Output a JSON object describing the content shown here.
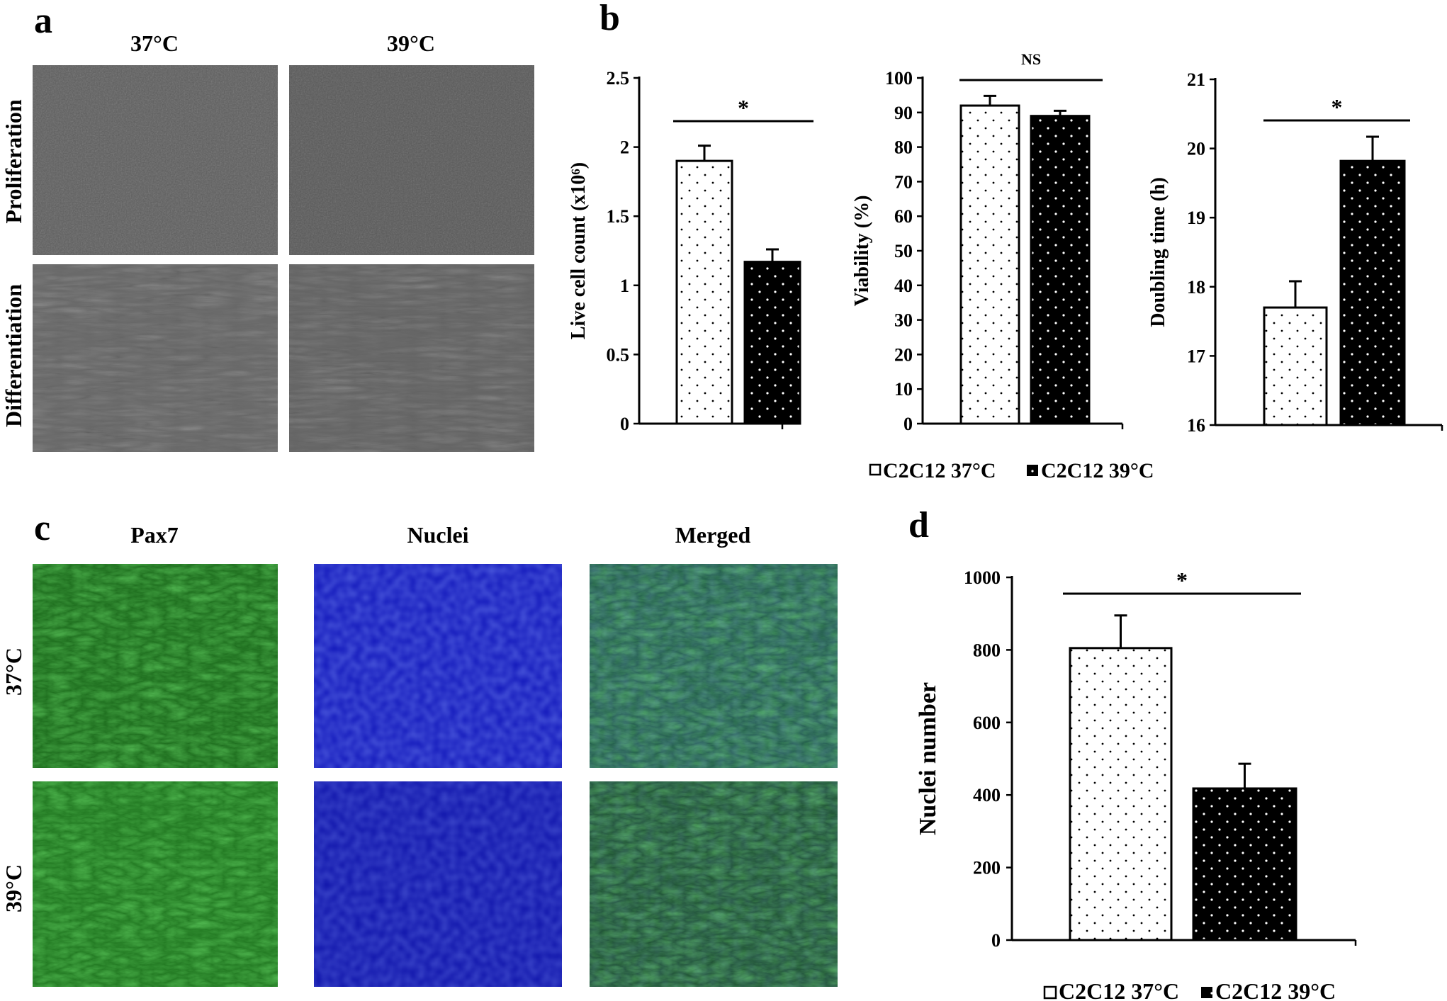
{
  "panels": {
    "a": {
      "label": "a",
      "col_headers": [
        "37°C",
        "39°C"
      ],
      "row_headers": [
        "Proliferation",
        "Differentiation"
      ]
    },
    "b": {
      "label": "b"
    },
    "c": {
      "label": "c",
      "col_headers": [
        "Pax7",
        "Nuclei",
        "Merged"
      ],
      "row_headers": [
        "37°C",
        "39°C"
      ]
    },
    "d": {
      "label": "d"
    }
  },
  "legend": {
    "series": [
      "C2C12 37°C",
      "C2C12 39°C"
    ]
  },
  "colors": {
    "micro_gray": "#5b5b5b",
    "fluor_green": "#2f8f2f",
    "fluor_blue": "#1020d8",
    "merged_teal": "#1f7f6a",
    "bar_black": "#000000",
    "bar_white": "#ffffff"
  },
  "chart_data": [
    {
      "id": "b1",
      "type": "bar",
      "categories": [
        "C2C12 37°C",
        "C2C12 39°C"
      ],
      "values": [
        1.9,
        1.17
      ],
      "errors": [
        0.11,
        0.09
      ],
      "ylabel": "Live cell count (x10⁶)",
      "ylim": [
        0,
        2.5
      ],
      "yticks": [
        "0",
        "0.5",
        "1",
        "1.5",
        "2",
        "2.5"
      ],
      "significance": "*"
    },
    {
      "id": "b2",
      "type": "bar",
      "categories": [
        "C2C12 37°C",
        "C2C12 39°C"
      ],
      "values": [
        92,
        89
      ],
      "errors": [
        2.8,
        1.5
      ],
      "ylabel": "Viability (%)",
      "ylim": [
        0,
        100
      ],
      "yticks": [
        "0",
        "10",
        "20",
        "30",
        "40",
        "50",
        "60",
        "70",
        "80",
        "90",
        "100"
      ],
      "significance": "NS"
    },
    {
      "id": "b3",
      "type": "bar",
      "categories": [
        "C2C12 37°C",
        "C2C12 39°C"
      ],
      "values": [
        17.7,
        19.82
      ],
      "errors": [
        0.38,
        0.35
      ],
      "ylabel": "Doubling time (h)",
      "ylim": [
        16,
        21
      ],
      "yticks": [
        "16",
        "17",
        "18",
        "19",
        "20",
        "21"
      ],
      "significance": "*"
    },
    {
      "id": "d",
      "type": "bar",
      "categories": [
        "C2C12 37°C",
        "C2C12 39°C"
      ],
      "values": [
        805,
        418
      ],
      "errors": [
        90,
        68
      ],
      "ylabel": "Nuclei number",
      "ylim": [
        0,
        1000
      ],
      "yticks": [
        "0",
        "200",
        "400",
        "600",
        "800",
        "1000"
      ],
      "significance": "*"
    }
  ]
}
